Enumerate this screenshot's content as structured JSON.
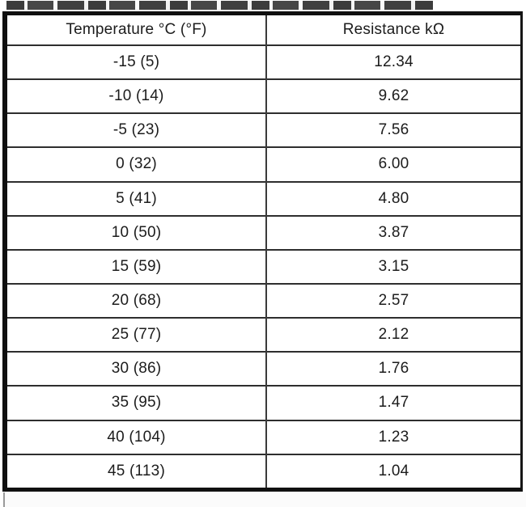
{
  "colors": {
    "page_bg": "#ffffff",
    "table_border": "#101010",
    "grid_line": "#2e2e2e",
    "column_divider": "#3a3a3a",
    "text": "#1c1c1c",
    "next_section_bg": "#fbfbfb"
  },
  "table": {
    "columns": [
      "Temperature °C (°F)",
      "Resistance kΩ"
    ],
    "rows": [
      [
        "-15 (5)",
        "12.34"
      ],
      [
        "-10 (14)",
        "9.62"
      ],
      [
        "-5 (23)",
        "7.56"
      ],
      [
        "0 (32)",
        "6.00"
      ],
      [
        "5 (41)",
        "4.80"
      ],
      [
        "10 (50)",
        "3.87"
      ],
      [
        "15 (59)",
        "3.15"
      ],
      [
        "20 (68)",
        "2.57"
      ],
      [
        "25 (77)",
        "2.12"
      ],
      [
        "30 (86)",
        "1.76"
      ],
      [
        "35 (95)",
        "1.47"
      ],
      [
        "40 (104)",
        "1.23"
      ],
      [
        "45 (113)",
        "1.04"
      ]
    ]
  }
}
